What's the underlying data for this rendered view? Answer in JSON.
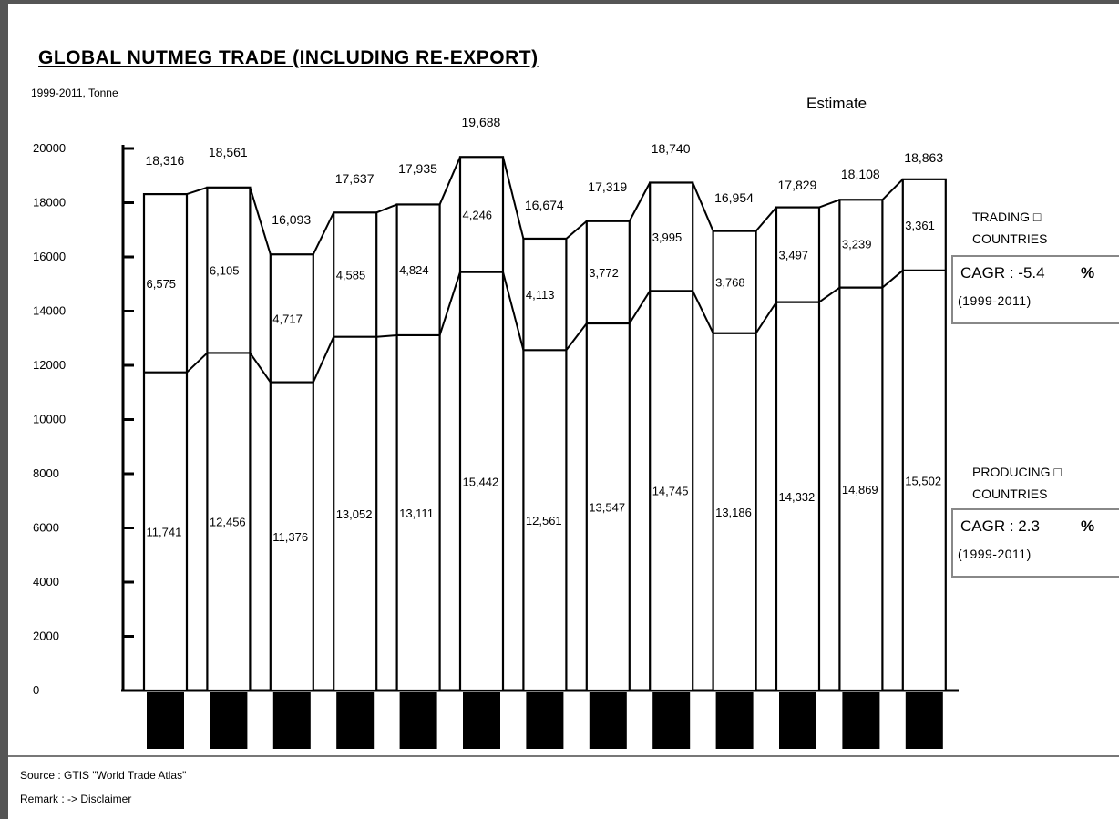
{
  "title": "GLOBAL NUTMEG TRADE (INCLUDING RE-EXPORT)",
  "subtitle": "1999-2011, Tonne",
  "estimate_label": "Estimate",
  "legend": {
    "trading": {
      "line1": "TRADING □",
      "line2": "COUNTRIES",
      "cagr": "CAGR : -5.4",
      "pct": "%",
      "period": "(1999-2011)"
    },
    "producing": {
      "line1": "PRODUCING □",
      "line2": "COUNTRIES",
      "cagr": "CAGR : 2.3",
      "pct": "%",
      "period": "(1999-2011)"
    }
  },
  "footer": {
    "source": "Source : GTIS \"World Trade Atlas\"",
    "remark": "Remark : -> Disclaimer"
  },
  "chart_data": {
    "type": "bar",
    "stacked": true,
    "ylim": [
      0,
      20000
    ],
    "yticks": [
      "0",
      "2000",
      "4000",
      "6000",
      "8000",
      "10000",
      "12000",
      "14000",
      "16000",
      "18000",
      "20000"
    ],
    "categories": [
      "",
      "",
      "",
      "",
      "",
      "",
      "",
      "",
      "",
      "",
      "",
      ""
    ],
    "series": [
      {
        "values": [
          11741,
          12456,
          11376,
          13052,
          13111,
          15442,
          12561,
          13547,
          14745,
          13186,
          14332,
          14869
        ],
        "labels": [
          "11,741",
          "12,456",
          "11,376",
          "13,052",
          "13,111",
          "15,442",
          "12,561",
          "13,547",
          "14,745",
          "13,186",
          "14,332",
          "14,869"
        ]
      },
      {
        "values": [
          6575,
          6105,
          4717,
          4585,
          4824,
          4246,
          4113,
          3772,
          3995,
          3768,
          3497,
          3239
        ],
        "labels": [
          "6,575",
          "6,105",
          "4,717",
          "4,585",
          "4,824",
          "4,246",
          "4,113",
          "3,772",
          "3,995",
          "3,768",
          "3,497",
          "3,239"
        ]
      }
    ],
    "totals": [
      18316,
      18561,
      16093,
      17637,
      17935,
      19688,
      16674,
      17319,
      18740,
      16954,
      17829,
      18108
    ],
    "total_labels": [
      "18,316",
      "18,561",
      "16,093",
      "17,637",
      "17,935",
      "19,688",
      "16,674",
      "17,319",
      "18,740",
      "16,954",
      "17,829",
      "18,108"
    ],
    "last_bar": {
      "producing": 15502,
      "producing_label": "15,502",
      "trading": 3361,
      "trading_label": "3,361",
      "total": 18863,
      "total_label": "18,863"
    }
  }
}
